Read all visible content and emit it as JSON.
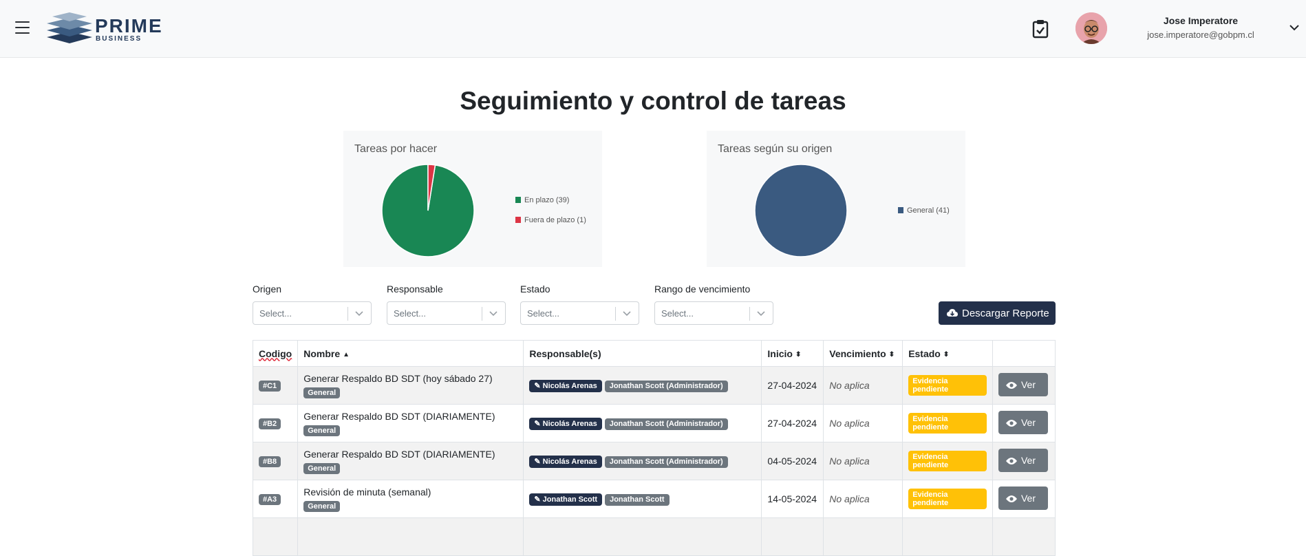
{
  "header": {
    "logo_word": "PRIME",
    "logo_sub": "BUSINESS",
    "user_name": "Jose Imperatore",
    "user_email": "jose.imperatore@gobpm.cl"
  },
  "page_title": "Seguimiento y control de tareas",
  "charts": {
    "left_title": "Tareas por hacer",
    "right_title": "Tareas según su origen"
  },
  "chart_data": [
    {
      "type": "pie",
      "title": "Tareas por hacer",
      "labels": [
        "En plazo (39)",
        "Fuera de plazo (1)"
      ],
      "values": [
        39,
        1
      ],
      "colors": [
        "#198754",
        "#dc3545"
      ],
      "legend": "right"
    },
    {
      "type": "pie",
      "title": "Tareas según su origen",
      "labels": [
        "General (41)"
      ],
      "values": [
        41
      ],
      "colors": [
        "#3a5a80"
      ],
      "legend": "right"
    }
  ],
  "filters": [
    {
      "label": "Origen",
      "placeholder": "Select..."
    },
    {
      "label": "Responsable",
      "placeholder": "Select..."
    },
    {
      "label": "Estado",
      "placeholder": "Select..."
    },
    {
      "label": "Rango de vencimiento",
      "placeholder": "Select..."
    }
  ],
  "download_label": "Descargar Reporte",
  "table": {
    "headers": {
      "codigo": "Codigo",
      "nombre": "Nombre",
      "responsables": "Responsable(s)",
      "inicio": "Inicio",
      "vencimiento": "Vencimiento",
      "estado": "Estado"
    },
    "rows": [
      {
        "code": "#C1",
        "name": "Generar Respaldo BD SDT (hoy sábado 27)",
        "tag": "General",
        "resp_primary": "Nicolás Arenas",
        "resp_secondary": "Jonathan Scott (Administrador)",
        "inicio": "27-04-2024",
        "vencimiento": "No aplica",
        "estado": "Evidencia pendiente",
        "action": "Ver"
      },
      {
        "code": "#B2",
        "name": "Generar Respaldo BD SDT (DIARIAMENTE)",
        "tag": "General",
        "resp_primary": "Nicolás Arenas",
        "resp_secondary": "Jonathan Scott (Administrador)",
        "inicio": "27-04-2024",
        "vencimiento": "No aplica",
        "estado": "Evidencia pendiente",
        "action": "Ver"
      },
      {
        "code": "#B8",
        "name": "Generar Respaldo BD SDT (DIARIAMENTE)",
        "tag": "General",
        "resp_primary": "Nicolás Arenas",
        "resp_secondary": "Jonathan Scott (Administrador)",
        "inicio": "04-05-2024",
        "vencimiento": "No aplica",
        "estado": "Evidencia pendiente",
        "action": "Ver"
      },
      {
        "code": "#A3",
        "name": "Revisión de minuta (semanal)",
        "tag": "General",
        "resp_primary": "Jonathan Scott",
        "resp_secondary": "Jonathan Scott",
        "inicio": "14-05-2024",
        "vencimiento": "No aplica",
        "estado": "Evidencia pendiente",
        "action": "Ver"
      }
    ]
  }
}
